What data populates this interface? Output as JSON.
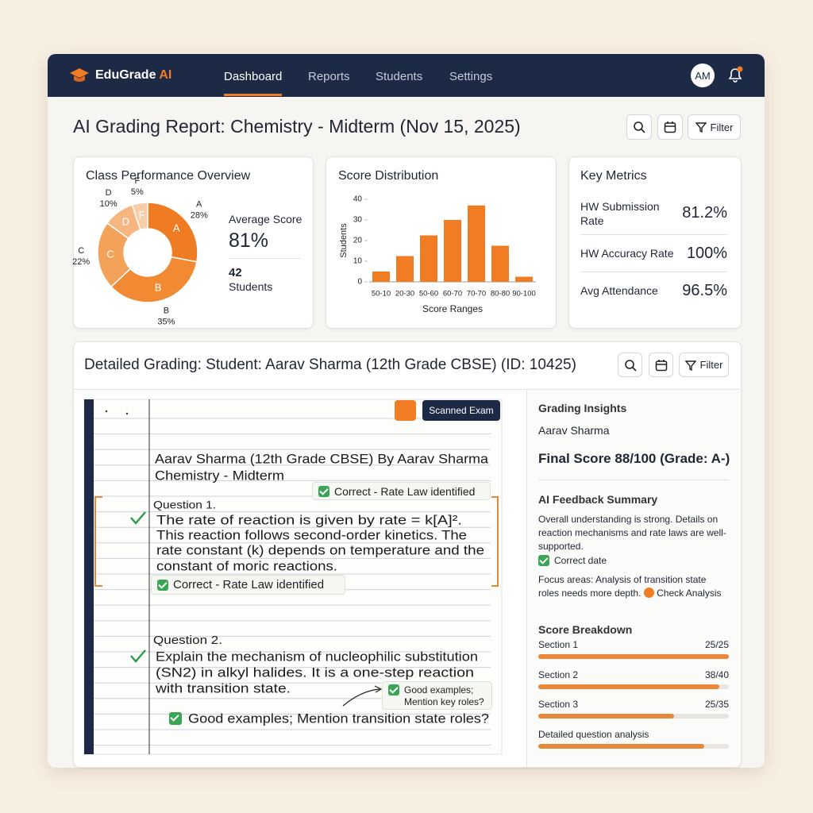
{
  "nav": {
    "brand": "EduGrade",
    "brand_accent": "AI",
    "links": [
      "Dashboard",
      "Reports",
      "Students",
      "Settings"
    ],
    "avatar": "AM"
  },
  "header": {
    "title": "AI Grading Report: Chemistry - Midterm (Nov 15, 2025)",
    "filter": "Filter"
  },
  "chart_data": [
    {
      "type": "pie",
      "donut": true,
      "title": "Class Performance Overview",
      "categories": [
        "A",
        "B",
        "C",
        "D",
        "F"
      ],
      "values": [
        28,
        35,
        22,
        10,
        5
      ],
      "value_labels": [
        "28%",
        "35%",
        "22%",
        "10%",
        "5%"
      ],
      "colors": [
        "#ef7b22",
        "#f28a33",
        "#f3a25a",
        "#f6b681",
        "#f9cda8"
      ]
    },
    {
      "type": "bar",
      "title": "Score Distribution",
      "categories": [
        "50-10",
        "20-30",
        "50-60",
        "60-70",
        "70-70",
        "80-80",
        "90-100"
      ],
      "values": [
        5,
        12.5,
        22.5,
        30,
        37,
        17.5,
        2.5
      ],
      "color": "#f07d24",
      "ylim": [
        0,
        40
      ],
      "yticks": [
        0,
        10,
        20,
        30,
        40
      ],
      "ylabel": "Students",
      "xlabel": "Score Ranges"
    }
  ],
  "overview": {
    "average_label": "Average Score",
    "average_value": "81%",
    "count": "42",
    "count_label": "Students"
  },
  "key_metrics": {
    "title": "Key Metrics",
    "rows": [
      {
        "label": "HW Submission Rate",
        "value": "81.2%"
      },
      {
        "label": "HW Accuracy Rate",
        "value": "100%"
      },
      {
        "label": "Avg Attendance",
        "value": "96.5%"
      }
    ]
  },
  "detail": {
    "title": "Detailed Grading: Student: Aarav Sharma (12th Grade CBSE) (ID: 10425)",
    "filter": "Filter",
    "badge": "Scanned Exam",
    "exam": {
      "heading": "Aarav Sharma (12th Grade CBSE) By Aarav Sharma",
      "subject": "Chemistry - Midterm",
      "tag_top": "Correct - Rate Law identified",
      "q1_label": "Question 1.",
      "q1_lines": [
        "The rate of reaction is given by rate = k[A]².",
        "This reaction follows second-order kinetics. The",
        "rate constant (k) depends on temperature and the",
        "constant of moric reactions."
      ],
      "q1_tag": "Correct - Rate Law identified",
      "q2_label": "Question 2.",
      "q2_lines": [
        "Explain the mechanism of nucleophilic substitution",
        "(SN2) in alkyl halides. It is a one-step reaction",
        "with transition state."
      ],
      "note": [
        "Good examples;",
        "Mention key roles?"
      ],
      "final_comment": "Good examples; Mention transition state roles?"
    },
    "insights": {
      "title": "Grading Insights",
      "student": "Aarav Sharma",
      "final_score": "Final Score 88/100 (Grade: A-)",
      "feedback_title": "AI Feedback Summary",
      "feedback": "Overall understanding is strong. Details on reaction mechanisms and rate laws are well-supported.",
      "correct_note": "Correct date",
      "focus": "Focus areas: Analysis of transition state roles needs more depth.",
      "focus_action": "Check Analysis",
      "breakdown_title": "Score Breakdown",
      "sections": [
        {
          "name": "Section 1",
          "score": 25,
          "max": 25,
          "label": "25/25"
        },
        {
          "name": "Section 2",
          "score": 38,
          "max": 40,
          "label": "38/40"
        },
        {
          "name": "Section 3",
          "score": 25,
          "max": 35,
          "label": "25/35"
        }
      ],
      "detail_bar": {
        "name": "Detailed question analysis",
        "value": 87,
        "xlim": [
          0,
          100
        ]
      }
    }
  }
}
